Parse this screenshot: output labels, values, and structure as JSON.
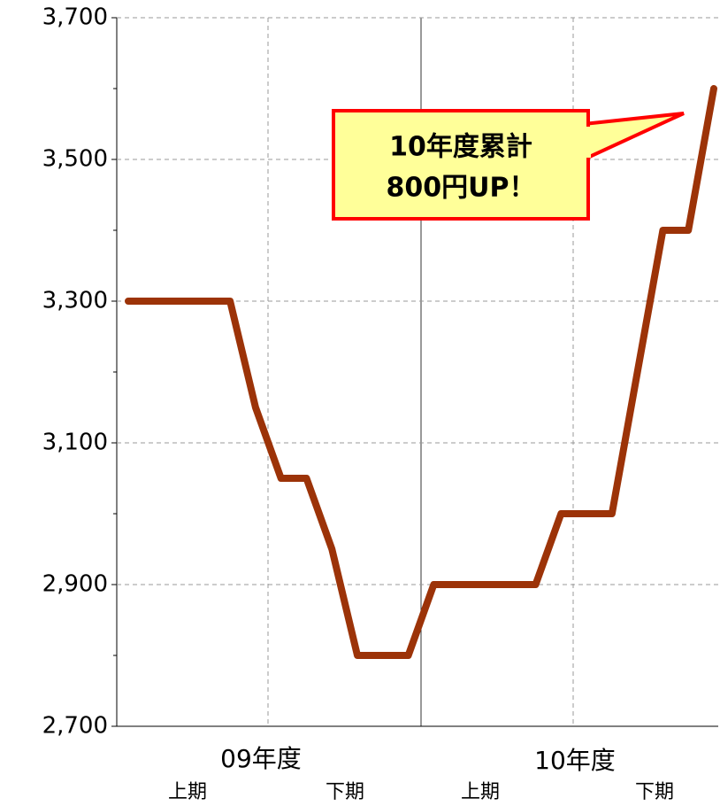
{
  "chart_data": {
    "type": "line",
    "categories": [
      null,
      null,
      null,
      null,
      null,
      null,
      null,
      null,
      null,
      null,
      null,
      null,
      null,
      null,
      null,
      null,
      null,
      null,
      null,
      null,
      null,
      null,
      null,
      null
    ],
    "series": [
      {
        "color": "#9c3308",
        "values": [
          3300,
          3300,
          3300,
          3300,
          3300,
          3150,
          3050,
          3050,
          2950,
          2800,
          2800,
          2800,
          2900,
          2900,
          2900,
          2900,
          2900,
          3000,
          3000,
          3000,
          3200,
          3400,
          3400,
          3600
        ]
      }
    ],
    "ylim": [
      2700,
      3700
    ],
    "yticks": [
      {
        "value": 2700,
        "label": "2,700"
      },
      {
        "value": 2900,
        "label": "2,900"
      },
      {
        "value": 3100,
        "label": "3,100"
      },
      {
        "value": 3300,
        "label": "3,300"
      },
      {
        "value": 3500,
        "label": "3,500"
      },
      {
        "value": 3700,
        "label": "3,700"
      }
    ],
    "y_minor_ticks": [
      2800,
      3000,
      3200,
      3400,
      3600
    ],
    "grid": true,
    "year_labels": [
      "09年度",
      "10年度"
    ],
    "half_labels": [
      "上期",
      "下期",
      "上期",
      "下期"
    ],
    "annotation": [
      "10年度累計",
      "800円UP！"
    ]
  }
}
